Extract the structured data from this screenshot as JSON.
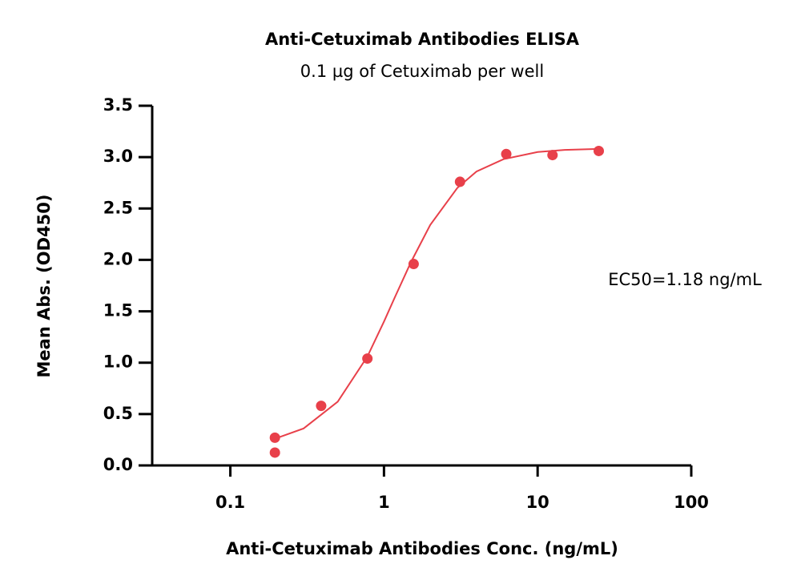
{
  "chart_data": {
    "type": "scatter",
    "title": "Anti-Cetuximab Antibodies ELISA",
    "subtitle": "0.1 µg of Cetuximab per well",
    "x_label": "Anti-Cetuximab Antibodies Conc. (ng/mL)",
    "y_label": "Mean Abs. (OD450)",
    "annotation": "EC50=1.18 ng/mL",
    "xscale": "log",
    "xlim": [
      0.031,
      100
    ],
    "xticks": [
      0.1,
      1,
      10,
      100
    ],
    "ylim": [
      0,
      3.5
    ],
    "yticks": [
      {
        "value": 0,
        "label": "0.0"
      },
      0.5,
      {
        "value": 1,
        "label": "1.0"
      },
      1.5,
      {
        "value": 2,
        "label": "2.0"
      },
      2.5,
      {
        "value": 3,
        "label": "3.0"
      },
      3.5
    ],
    "series": [
      {
        "style": "markers",
        "color": "#e8404a",
        "x": [
          0.195,
          0.195,
          0.39,
          0.78,
          1.56,
          3.125,
          6.25,
          12.5,
          25
        ],
        "values": [
          0.27,
          0.125,
          0.58,
          1.04,
          1.96,
          2.76,
          3.03,
          3.02,
          3.06
        ]
      },
      {
        "style": "line",
        "color": "#e8404a",
        "x": [
          0.195,
          0.3,
          0.5,
          0.78,
          1,
          1.18,
          1.5,
          2,
          3,
          4,
          6,
          10,
          15,
          25
        ],
        "values": [
          0.26,
          0.36,
          0.62,
          1.06,
          1.4,
          1.64,
          1.98,
          2.34,
          2.7,
          2.86,
          2.98,
          3.05,
          3.07,
          3.08
        ]
      }
    ]
  }
}
